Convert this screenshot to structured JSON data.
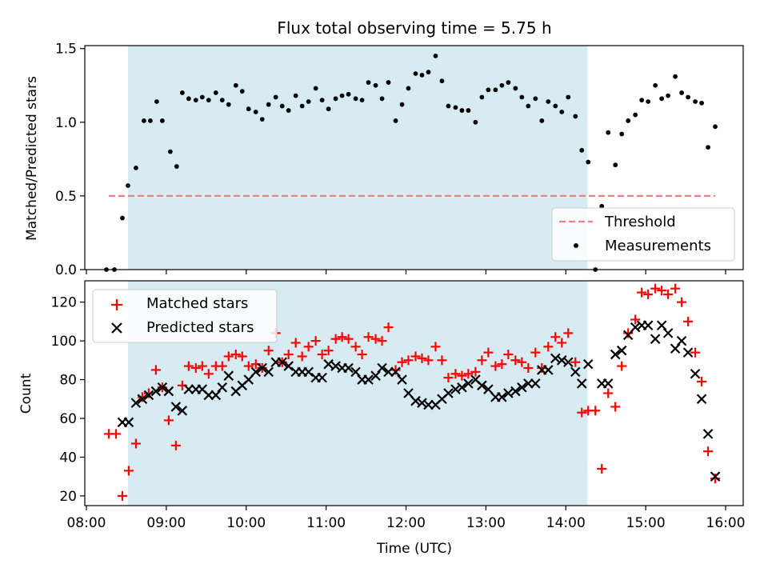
{
  "chart_data": {
    "type": "scatter",
    "title": "Flux total observing time = 5.75 h",
    "xlabel": "Time (UTC)",
    "x_ticks": [
      "08:00",
      "09:00",
      "10:00",
      "11:00",
      "12:00",
      "13:00",
      "14:00",
      "15:00",
      "16:00"
    ],
    "x_range_hours": [
      7.98,
      16.22
    ],
    "shaded_span_hours": [
      8.52,
      14.27
    ],
    "colors": {
      "shade": "#add8e6",
      "matched": "#ff0000",
      "predicted": "#000000",
      "measurement": "#000000",
      "threshold": "#f08080"
    },
    "top_panel": {
      "ylabel": "Matched/Predicted stars",
      "ylim": [
        0,
        1.52
      ],
      "y_ticks": [
        "0.0",
        "0.5",
        "1.0",
        "1.5"
      ],
      "legend": {
        "placement": "lower right",
        "entries": [
          "Threshold",
          "Measurements"
        ]
      },
      "threshold": {
        "value": 0.5,
        "x_start": 8.28,
        "x_end": 15.87
      },
      "measurements": [
        [
          8.25,
          0.0
        ],
        [
          8.35,
          0.0
        ],
        [
          8.45,
          0.35
        ],
        [
          8.52,
          0.57
        ],
        [
          8.62,
          0.69
        ],
        [
          8.72,
          1.01
        ],
        [
          8.8,
          1.01
        ],
        [
          8.88,
          1.14
        ],
        [
          8.95,
          1.01
        ],
        [
          9.05,
          0.8
        ],
        [
          9.13,
          0.7
        ],
        [
          9.2,
          1.2
        ],
        [
          9.28,
          1.16
        ],
        [
          9.37,
          1.15
        ],
        [
          9.45,
          1.17
        ],
        [
          9.53,
          1.15
        ],
        [
          9.62,
          1.2
        ],
        [
          9.7,
          1.15
        ],
        [
          9.78,
          1.12
        ],
        [
          9.87,
          1.25
        ],
        [
          9.95,
          1.21
        ],
        [
          10.03,
          1.09
        ],
        [
          10.12,
          1.07
        ],
        [
          10.2,
          1.02
        ],
        [
          10.28,
          1.12
        ],
        [
          10.37,
          1.17
        ],
        [
          10.45,
          1.11
        ],
        [
          10.53,
          1.08
        ],
        [
          10.62,
          1.18
        ],
        [
          10.7,
          1.11
        ],
        [
          10.78,
          1.14
        ],
        [
          10.87,
          1.23
        ],
        [
          10.95,
          1.15
        ],
        [
          11.03,
          1.09
        ],
        [
          11.12,
          1.16
        ],
        [
          11.2,
          1.18
        ],
        [
          11.28,
          1.19
        ],
        [
          11.37,
          1.16
        ],
        [
          11.45,
          1.15
        ],
        [
          11.53,
          1.27
        ],
        [
          11.62,
          1.25
        ],
        [
          11.7,
          1.16
        ],
        [
          11.78,
          1.27
        ],
        [
          11.87,
          1.01
        ],
        [
          11.95,
          1.12
        ],
        [
          12.03,
          1.23
        ],
        [
          12.12,
          1.33
        ],
        [
          12.2,
          1.32
        ],
        [
          12.28,
          1.34
        ],
        [
          12.37,
          1.45
        ],
        [
          12.45,
          1.28
        ],
        [
          12.53,
          1.11
        ],
        [
          12.62,
          1.1
        ],
        [
          12.7,
          1.08
        ],
        [
          12.78,
          1.08
        ],
        [
          12.87,
          1.0
        ],
        [
          12.95,
          1.17
        ],
        [
          13.03,
          1.22
        ],
        [
          13.12,
          1.22
        ],
        [
          13.2,
          1.25
        ],
        [
          13.28,
          1.27
        ],
        [
          13.37,
          1.23
        ],
        [
          13.45,
          1.17
        ],
        [
          13.53,
          1.11
        ],
        [
          13.62,
          1.16
        ],
        [
          13.7,
          1.01
        ],
        [
          13.78,
          1.14
        ],
        [
          13.87,
          1.11
        ],
        [
          13.95,
          1.07
        ],
        [
          14.03,
          1.17
        ],
        [
          14.12,
          1.04
        ],
        [
          14.2,
          0.81
        ],
        [
          14.28,
          0.73
        ],
        [
          14.37,
          0.0
        ],
        [
          14.45,
          0.43
        ],
        [
          14.53,
          0.93
        ],
        [
          14.62,
          0.71
        ],
        [
          14.7,
          0.92
        ],
        [
          14.78,
          1.01
        ],
        [
          14.87,
          1.05
        ],
        [
          14.95,
          1.15
        ],
        [
          15.03,
          1.14
        ],
        [
          15.12,
          1.25
        ],
        [
          15.2,
          1.16
        ],
        [
          15.28,
          1.18
        ],
        [
          15.37,
          1.31
        ],
        [
          15.45,
          1.2
        ],
        [
          15.53,
          1.17
        ],
        [
          15.62,
          1.14
        ],
        [
          15.7,
          1.13
        ],
        [
          15.78,
          0.83
        ],
        [
          15.87,
          0.97
        ]
      ]
    },
    "bottom_panel": {
      "ylabel": "Count",
      "ylim": [
        15,
        131
      ],
      "y_ticks": [
        "20",
        "40",
        "60",
        "80",
        "100",
        "120"
      ],
      "legend": {
        "placement": "upper left",
        "entries": [
          "Matched stars",
          "Predicted stars"
        ]
      },
      "matched_stars": [
        [
          8.28,
          52
        ],
        [
          8.37,
          52
        ],
        [
          8.45,
          20
        ],
        [
          8.53,
          33
        ],
        [
          8.62,
          47
        ],
        [
          8.7,
          71
        ],
        [
          8.78,
          73
        ],
        [
          8.87,
          85
        ],
        [
          8.95,
          76
        ],
        [
          9.03,
          59
        ],
        [
          9.12,
          46
        ],
        [
          9.2,
          77
        ],
        [
          9.28,
          87
        ],
        [
          9.37,
          86
        ],
        [
          9.45,
          87
        ],
        [
          9.53,
          83
        ],
        [
          9.62,
          87
        ],
        [
          9.7,
          87
        ],
        [
          9.78,
          92
        ],
        [
          9.87,
          93
        ],
        [
          9.95,
          92
        ],
        [
          10.03,
          87
        ],
        [
          10.12,
          88
        ],
        [
          10.2,
          86
        ],
        [
          10.28,
          95
        ],
        [
          10.37,
          104
        ],
        [
          10.45,
          89
        ],
        [
          10.53,
          93
        ],
        [
          10.62,
          99
        ],
        [
          10.7,
          92
        ],
        [
          10.78,
          97
        ],
        [
          10.87,
          100
        ],
        [
          10.95,
          93
        ],
        [
          11.03,
          95
        ],
        [
          11.12,
          101
        ],
        [
          11.2,
          102
        ],
        [
          11.28,
          101
        ],
        [
          11.37,
          97
        ],
        [
          11.45,
          93
        ],
        [
          11.53,
          102
        ],
        [
          11.62,
          101
        ],
        [
          11.7,
          100
        ],
        [
          11.78,
          107
        ],
        [
          11.87,
          85
        ],
        [
          11.95,
          89
        ],
        [
          12.03,
          90
        ],
        [
          12.12,
          92
        ],
        [
          12.2,
          91
        ],
        [
          12.28,
          90
        ],
        [
          12.37,
          97
        ],
        [
          12.45,
          90
        ],
        [
          12.53,
          81
        ],
        [
          12.62,
          83
        ],
        [
          12.7,
          82
        ],
        [
          12.78,
          83
        ],
        [
          12.87,
          84
        ],
        [
          12.95,
          90
        ],
        [
          13.03,
          94
        ],
        [
          13.12,
          87
        ],
        [
          13.2,
          88
        ],
        [
          13.28,
          93
        ],
        [
          13.37,
          90
        ],
        [
          13.45,
          89
        ],
        [
          13.53,
          86
        ],
        [
          13.62,
          94
        ],
        [
          13.7,
          86
        ],
        [
          13.78,
          97
        ],
        [
          13.87,
          102
        ],
        [
          13.95,
          99
        ],
        [
          14.03,
          104
        ],
        [
          14.12,
          89
        ],
        [
          14.2,
          63
        ],
        [
          14.28,
          64
        ],
        [
          14.37,
          64
        ],
        [
          14.45,
          34
        ],
        [
          14.53,
          73
        ],
        [
          14.62,
          66
        ],
        [
          14.7,
          87
        ],
        [
          14.78,
          104
        ],
        [
          14.87,
          111
        ],
        [
          14.95,
          125
        ],
        [
          15.03,
          124
        ],
        [
          15.12,
          127
        ],
        [
          15.2,
          126
        ],
        [
          15.28,
          124
        ],
        [
          15.37,
          127
        ],
        [
          15.45,
          120
        ],
        [
          15.53,
          110
        ],
        [
          15.62,
          94
        ],
        [
          15.7,
          79
        ],
        [
          15.78,
          43
        ],
        [
          15.87,
          29
        ]
      ],
      "predicted_stars": [
        [
          8.45,
          58
        ],
        [
          8.53,
          58
        ],
        [
          8.62,
          68
        ],
        [
          8.7,
          70
        ],
        [
          8.78,
          72
        ],
        [
          8.87,
          74
        ],
        [
          8.95,
          76
        ],
        [
          9.03,
          74
        ],
        [
          9.12,
          66
        ],
        [
          9.2,
          64
        ],
        [
          9.28,
          75
        ],
        [
          9.37,
          75
        ],
        [
          9.45,
          75
        ],
        [
          9.53,
          72
        ],
        [
          9.62,
          72
        ],
        [
          9.7,
          76
        ],
        [
          9.78,
          82
        ],
        [
          9.87,
          74
        ],
        [
          9.95,
          77
        ],
        [
          10.03,
          80
        ],
        [
          10.12,
          84
        ],
        [
          10.2,
          86
        ],
        [
          10.28,
          84
        ],
        [
          10.37,
          89
        ],
        [
          10.45,
          89
        ],
        [
          10.53,
          87
        ],
        [
          10.62,
          84
        ],
        [
          10.7,
          84
        ],
        [
          10.78,
          84
        ],
        [
          10.87,
          81
        ],
        [
          10.95,
          81
        ],
        [
          11.03,
          88
        ],
        [
          11.12,
          87
        ],
        [
          11.2,
          86
        ],
        [
          11.28,
          86
        ],
        [
          11.37,
          84
        ],
        [
          11.45,
          80
        ],
        [
          11.53,
          80
        ],
        [
          11.62,
          82
        ],
        [
          11.7,
          86
        ],
        [
          11.78,
          84
        ],
        [
          11.87,
          84
        ],
        [
          11.95,
          80
        ],
        [
          12.03,
          73
        ],
        [
          12.12,
          69
        ],
        [
          12.2,
          68
        ],
        [
          12.28,
          67
        ],
        [
          12.37,
          67
        ],
        [
          12.45,
          70
        ],
        [
          12.53,
          73
        ],
        [
          12.62,
          75
        ],
        [
          12.7,
          76
        ],
        [
          12.78,
          78
        ],
        [
          12.87,
          80
        ],
        [
          12.95,
          77
        ],
        [
          13.03,
          75
        ],
        [
          13.12,
          71
        ],
        [
          13.2,
          71
        ],
        [
          13.28,
          73
        ],
        [
          13.37,
          74
        ],
        [
          13.45,
          76
        ],
        [
          13.53,
          78
        ],
        [
          13.62,
          78
        ],
        [
          13.7,
          85
        ],
        [
          13.78,
          85
        ],
        [
          13.87,
          91
        ],
        [
          13.95,
          90
        ],
        [
          14.03,
          89
        ],
        [
          14.12,
          84
        ],
        [
          14.2,
          78
        ],
        [
          14.28,
          88
        ],
        [
          14.45,
          78
        ],
        [
          14.53,
          78
        ],
        [
          14.62,
          93
        ],
        [
          14.7,
          95
        ],
        [
          14.78,
          103
        ],
        [
          14.87,
          107
        ],
        [
          14.95,
          108
        ],
        [
          15.03,
          108
        ],
        [
          15.12,
          101
        ],
        [
          15.2,
          108
        ],
        [
          15.28,
          104
        ],
        [
          15.37,
          96
        ],
        [
          15.45,
          100
        ],
        [
          15.53,
          94
        ],
        [
          15.62,
          83
        ],
        [
          15.7,
          70
        ],
        [
          15.78,
          52
        ],
        [
          15.87,
          30
        ]
      ]
    }
  }
}
